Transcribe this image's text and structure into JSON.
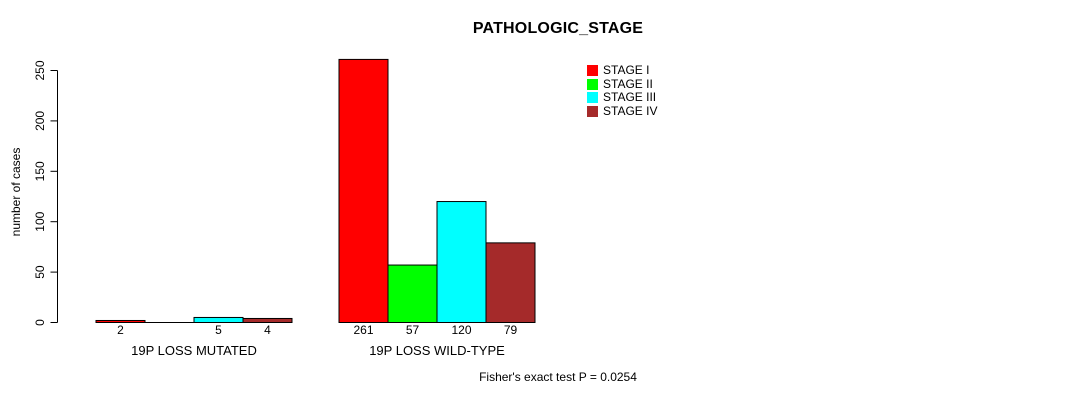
{
  "chart_data": {
    "type": "bar",
    "title": "PATHOLOGIC_STAGE",
    "ylabel": "number of cases",
    "xlabel": "",
    "categories": [
      "19P LOSS MUTATED",
      "19P LOSS WILD-TYPE"
    ],
    "series": [
      {
        "name": "STAGE I",
        "color": "#FF0000",
        "values": [
          2,
          261
        ]
      },
      {
        "name": "STAGE II",
        "color": "#00FF00",
        "values": [
          0,
          57
        ]
      },
      {
        "name": "STAGE III",
        "color": "#00FFFF",
        "values": [
          5,
          120
        ]
      },
      {
        "name": "STAGE IV",
        "color": "#A52A2A",
        "values": [
          4,
          79
        ]
      }
    ],
    "yticks": [
      0,
      50,
      100,
      150,
      200,
      250
    ],
    "ylim": [
      0,
      250
    ],
    "grid": false,
    "bar_border_color": "#000000",
    "bar_value_labels_shown": true,
    "legend_position": "top-right",
    "footnote": "Fisher's exact test P = 0.0254"
  }
}
